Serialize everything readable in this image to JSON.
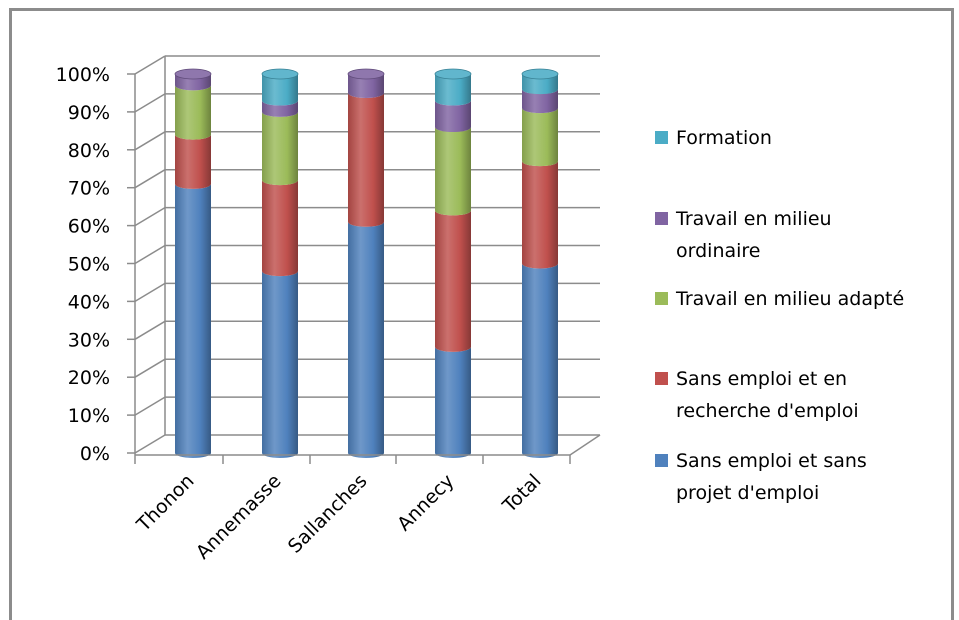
{
  "chart_data": {
    "type": "bar",
    "stacked": true,
    "percent": true,
    "categories": [
      "Thonon",
      "Annemasse",
      "Sallanches",
      "Annecy",
      "Total"
    ],
    "yticks": [
      "0%",
      "10%",
      "20%",
      "30%",
      "40%",
      "50%",
      "60%",
      "70%",
      "80%",
      "90%",
      "100%"
    ],
    "ylim": [
      0,
      100
    ],
    "grid": true,
    "legend_position": "right",
    "series": [
      {
        "name": "Sans emploi et sans projet d'emploi",
        "name_lines": [
          "Sans emploi et sans",
          "projet d'emploi"
        ],
        "color": "#4f81bd",
        "values": [
          71,
          48,
          61,
          28,
          50
        ]
      },
      {
        "name": "Sans emploi et en recherche d'emploi",
        "name_lines": [
          "Sans emploi et en",
          "recherche d'emploi"
        ],
        "color": "#c0504d",
        "values": [
          13,
          24,
          34,
          36,
          27
        ]
      },
      {
        "name": "Travail en milieu adapté",
        "name_lines": [
          "Travail en milieu adapté"
        ],
        "color": "#9bbb59",
        "values": [
          13,
          18,
          0,
          22,
          14
        ]
      },
      {
        "name": "Travail en milieu ordinaire",
        "name_lines": [
          "Travail en milieu",
          "ordinaire"
        ],
        "color": "#8064a2",
        "values": [
          3,
          3,
          5,
          7,
          5
        ]
      },
      {
        "name": "Formation",
        "name_lines": [
          "Formation"
        ],
        "color": "#4bacc6",
        "values": [
          0,
          7,
          0,
          7,
          4
        ]
      }
    ]
  }
}
